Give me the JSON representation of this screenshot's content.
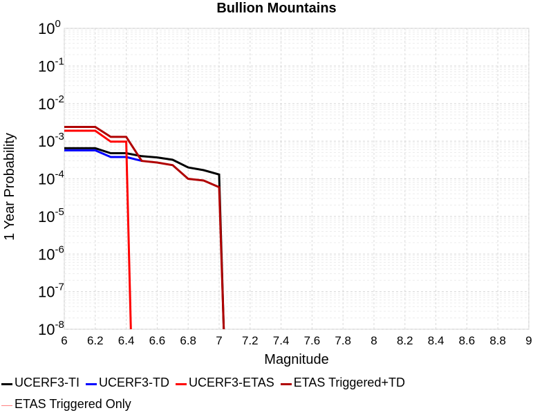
{
  "chart_data": {
    "type": "line",
    "title": "Bullion Mountains",
    "xlabel": "Magnitude",
    "ylabel": "1 Year Probability",
    "xlim": [
      6,
      9
    ],
    "ylim_log10": [
      -8,
      0
    ],
    "y_scale": "log",
    "grid": true,
    "legend_placement": "bottom",
    "x_ticks": [
      "6",
      "6.2",
      "6.4",
      "6.6",
      "6.8",
      "7",
      "7.2",
      "7.4",
      "7.6",
      "7.8",
      "8",
      "8.2",
      "8.4",
      "8.6",
      "8.8",
      "9"
    ],
    "y_ticks": [
      {
        "base": "10",
        "exp": "0"
      },
      {
        "base": "10",
        "exp": "-1"
      },
      {
        "base": "10",
        "exp": "-2"
      },
      {
        "base": "10",
        "exp": "-3"
      },
      {
        "base": "10",
        "exp": "-4"
      },
      {
        "base": "10",
        "exp": "-5"
      },
      {
        "base": "10",
        "exp": "-6"
      },
      {
        "base": "10",
        "exp": "-7"
      },
      {
        "base": "10",
        "exp": "-8"
      }
    ],
    "series": [
      {
        "name": "UCERF3-TI",
        "color": "#000000",
        "x": [
          6.0,
          6.2,
          6.3,
          6.4,
          6.5,
          6.6,
          6.7,
          6.8,
          6.9,
          7.0,
          7.03
        ],
        "y": [
          0.00065,
          0.00065,
          0.00048,
          0.00048,
          0.0004,
          0.00037,
          0.00032,
          0.0002,
          0.00017,
          0.00013,
          1e-09
        ]
      },
      {
        "name": "UCERF3-TD",
        "color": "#0000ff",
        "x": [
          6.0,
          6.2,
          6.3,
          6.4,
          6.5
        ],
        "y": [
          0.00057,
          0.00057,
          0.00038,
          0.00038,
          0.0003
        ]
      },
      {
        "name": "UCERF3-ETAS",
        "color": "#ff0000",
        "x": [
          6.0,
          6.2,
          6.3,
          6.4,
          6.43
        ],
        "y": [
          0.0019,
          0.0019,
          0.00097,
          0.00097,
          1e-09
        ]
      },
      {
        "name": "ETAS Triggered+TD",
        "color": "#b00000",
        "x": [
          6.0,
          6.2,
          6.3,
          6.4,
          6.5,
          6.6,
          6.7,
          6.8,
          6.9,
          7.0,
          7.03
        ],
        "y": [
          0.0024,
          0.0024,
          0.0013,
          0.0013,
          0.0003,
          0.00027,
          0.00023,
          0.0001,
          9e-05,
          6e-05,
          1e-09
        ]
      },
      {
        "name": "ETAS Triggered Only",
        "color": "#ff8080",
        "x": [],
        "y": []
      }
    ]
  }
}
